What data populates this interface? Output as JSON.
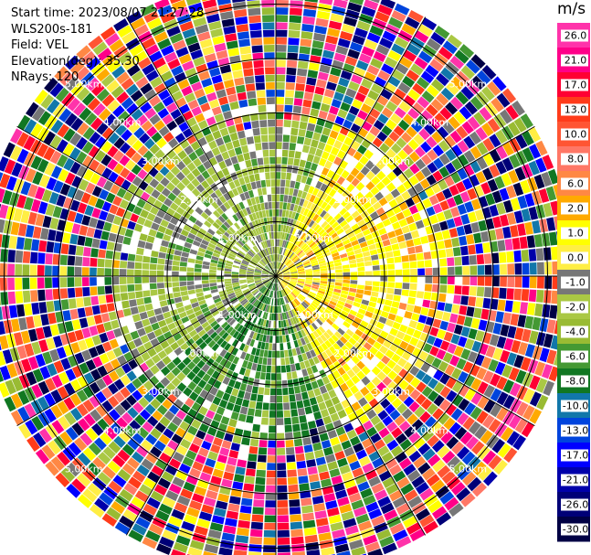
{
  "header": {
    "start_time": "Start time: 2023/08/07 21:27:28",
    "instrument": "WLS200s-181",
    "field": "Field: VEL",
    "elevation": "Elevation(deg): 35.30",
    "nrays": "NRays: 120"
  },
  "chart_data": {
    "type": "heatmap",
    "projection": "polar-ppi",
    "n_rays": 120,
    "n_gates": 40,
    "max_range_km": 5.5,
    "range_rings_km": [
      1.0,
      2.0,
      3.0,
      4.0,
      5.0
    ],
    "ring_labels": [
      {
        "text": "1.00km",
        "az_deg": -45
      },
      {
        "text": "1.00km",
        "az_deg": 45
      },
      {
        "text": "1.00km",
        "az_deg": 135
      },
      {
        "text": "1.00km",
        "az_deg": 225
      },
      {
        "text": "2.00km",
        "az_deg": -45
      },
      {
        "text": "2.00km",
        "az_deg": 45
      },
      {
        "text": "2.00km",
        "az_deg": 135
      },
      {
        "text": "2.00km",
        "az_deg": 225
      },
      {
        "text": "3.00km",
        "az_deg": -45
      },
      {
        "text": "3.00km",
        "az_deg": 45
      },
      {
        "text": "3.00km",
        "az_deg": 135
      },
      {
        "text": "3.00km",
        "az_deg": 225
      },
      {
        "text": "4.00km",
        "az_deg": -45
      },
      {
        "text": "4.00km",
        "az_deg": 45
      },
      {
        "text": "4.00km",
        "az_deg": 135
      },
      {
        "text": "4.00km",
        "az_deg": 225
      },
      {
        "text": "5.00km",
        "az_deg": -45
      },
      {
        "text": "5.00km",
        "az_deg": 45
      },
      {
        "text": "5.00km",
        "az_deg": 135
      },
      {
        "text": "5.00km",
        "az_deg": 225
      }
    ],
    "azimuth_lines_deg": [
      0,
      30,
      60,
      90,
      120,
      150,
      180,
      210,
      240,
      270,
      300,
      330
    ],
    "colorbar": {
      "unit": "m/s",
      "tick_labels": [
        "26.0",
        "21.0",
        "17.0",
        "13.0",
        "10.0",
        "8.0",
        "6.0",
        "2.0",
        "1.0",
        "0.0",
        "-1.0",
        "-2.0",
        "-4.0",
        "-6.0",
        "-8.0",
        "-10.0",
        "-13.0",
        "-17.0",
        "-21.0",
        "-26.0",
        "-30.0"
      ],
      "bins": [
        {
          "color": "#ff33aa"
        },
        {
          "color": "#ff0088"
        },
        {
          "color": "#ff0033"
        },
        {
          "color": "#ff3b1a"
        },
        {
          "color": "#ff5533"
        },
        {
          "color": "#ff7766"
        },
        {
          "color": "#ff8844"
        },
        {
          "color": "#ffaa00"
        },
        {
          "color": "#ffff00"
        },
        {
          "color": "#ffee44"
        },
        {
          "color": "#777777"
        },
        {
          "color": "#aac844"
        },
        {
          "color": "#99bb33"
        },
        {
          "color": "#449933"
        },
        {
          "color": "#117722"
        },
        {
          "color": "#1177aa"
        },
        {
          "color": "#0044dd"
        },
        {
          "color": "#0000ff"
        },
        {
          "color": "#0000aa"
        },
        {
          "color": "#000077"
        },
        {
          "color": "#000044"
        }
      ]
    },
    "field_summary": {
      "near_range_positive_sector_az_deg": [
        20,
        150
      ],
      "near_range_positive_value_ms": 2.0,
      "near_range_negative_sector_az_deg": [
        160,
        340
      ],
      "near_range_negative_value_ms": -4.0,
      "noise_start_km": 3.0
    }
  }
}
